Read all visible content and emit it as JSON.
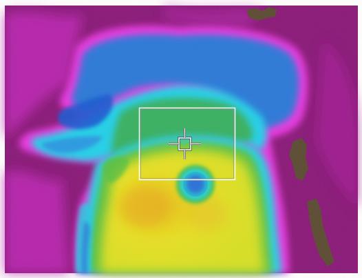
{
  "viewer": {
    "type": "thermal-camera-view",
    "palette": "iron-rainbow",
    "colors": {
      "coldest": "#8a1a7a",
      "cold": "#e020d8",
      "cool_blue": "#2a7ad8",
      "cyan": "#20d8e8",
      "green": "#58c848",
      "yellow": "#e8e820",
      "warm": "#e8c020",
      "background_border": "#ffffff"
    },
    "icons": {
      "measure_box": "rectangle-measurement-icon",
      "spot_meter": "crosshair-icon"
    }
  }
}
